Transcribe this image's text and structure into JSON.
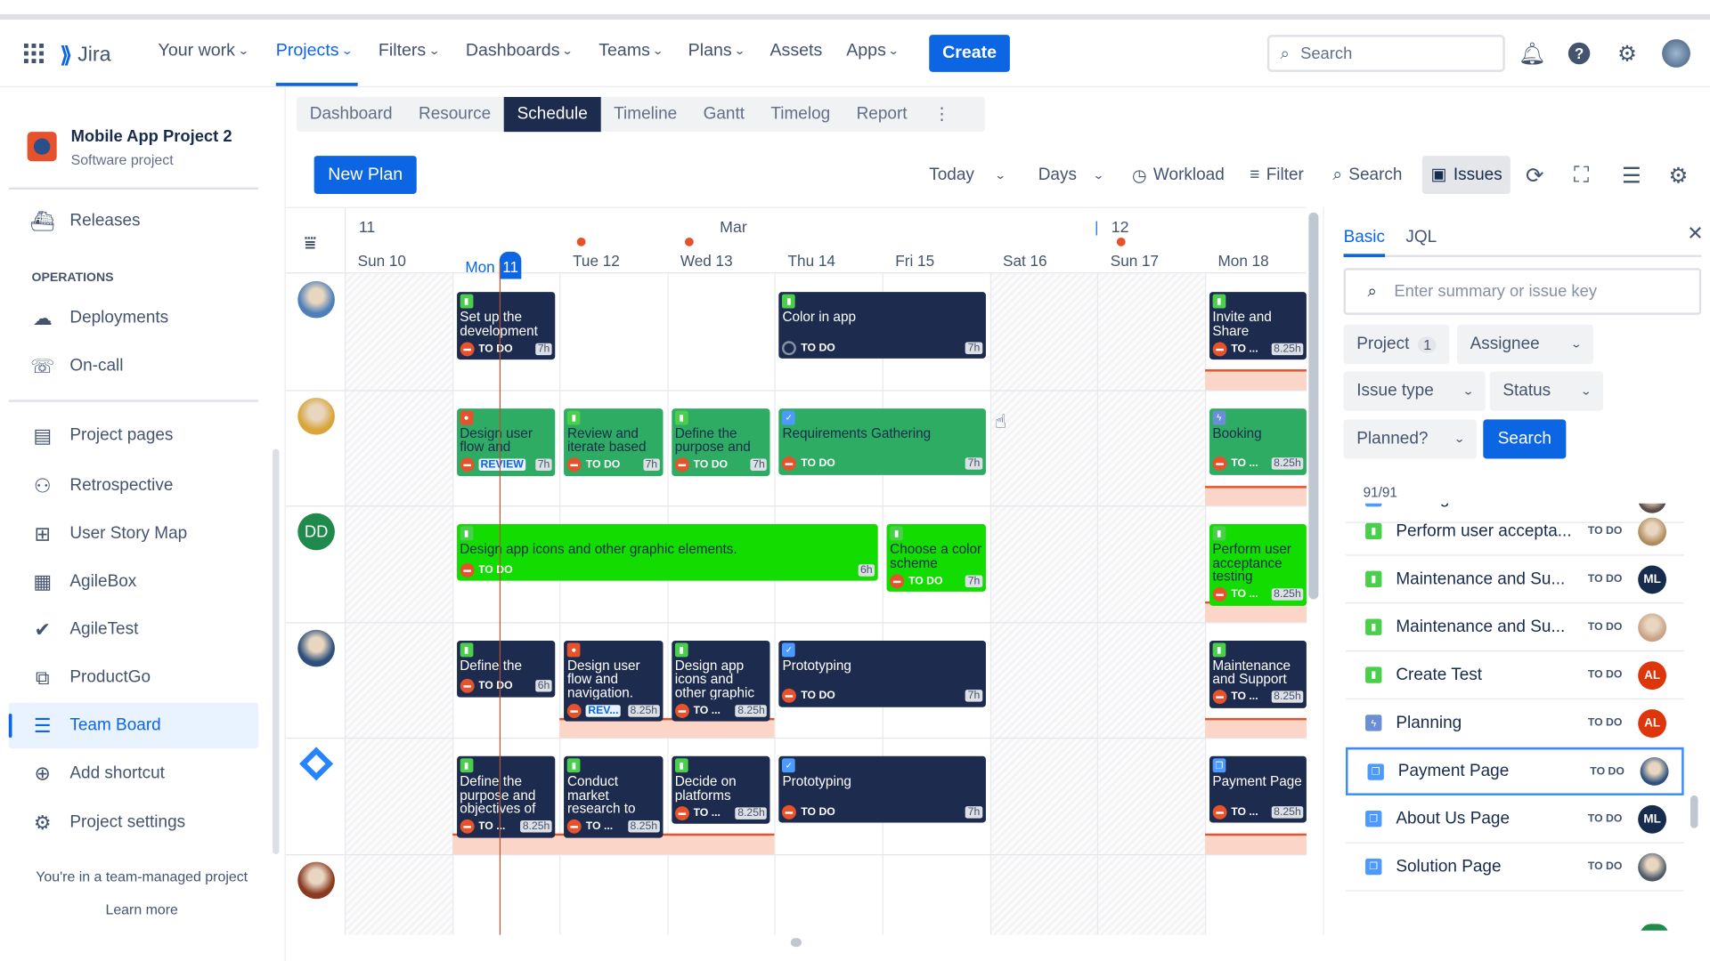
{
  "header": {
    "app_name": "Jira",
    "nav": [
      {
        "label": "Your work",
        "dropdown": true
      },
      {
        "label": "Projects",
        "dropdown": true,
        "active": true
      },
      {
        "label": "Filters",
        "dropdown": true
      },
      {
        "label": "Dashboards",
        "dropdown": true
      },
      {
        "label": "Teams",
        "dropdown": true
      },
      {
        "label": "Plans",
        "dropdown": true
      },
      {
        "label": "Assets",
        "dropdown": false
      },
      {
        "label": "Apps",
        "dropdown": true
      }
    ],
    "create_label": "Create",
    "search_placeholder": "Search",
    "icons": [
      "notification-icon",
      "help-icon",
      "settings-icon",
      "profile-avatar"
    ]
  },
  "sidebar": {
    "project_name": "Mobile App Project 2",
    "project_type": "Software project",
    "releases": "Releases",
    "operations_heading": "OPERATIONS",
    "ops_items": [
      {
        "label": "Deployments",
        "icon": "cloud-icon"
      },
      {
        "label": "On-call",
        "icon": "on-call-icon"
      }
    ],
    "items": [
      {
        "label": "Project pages",
        "icon": "page-icon"
      },
      {
        "label": "Retrospective",
        "icon": "retrospective-icon"
      },
      {
        "label": "User Story Map",
        "icon": "story-map-icon"
      },
      {
        "label": "AgileBox",
        "icon": "agilebox-icon"
      },
      {
        "label": "AgileTest",
        "icon": "agiletest-icon"
      },
      {
        "label": "ProductGo",
        "icon": "productgo-icon"
      },
      {
        "label": "Team Board",
        "icon": "team-board-icon",
        "selected": true
      },
      {
        "label": "Add shortcut",
        "icon": "add-shortcut-icon"
      },
      {
        "label": "Project settings",
        "icon": "settings-icon"
      }
    ],
    "footer_text": "You're in a team-managed project",
    "learn_more": "Learn more"
  },
  "tabs": [
    {
      "label": "Dashboard"
    },
    {
      "label": "Resource"
    },
    {
      "label": "Schedule",
      "active": true
    },
    {
      "label": "Timeline"
    },
    {
      "label": "Gantt"
    },
    {
      "label": "Timelog"
    },
    {
      "label": "Report"
    }
  ],
  "toolbar": {
    "new_plan": "New Plan",
    "today": "Today",
    "days": "Days",
    "workload": "Workload",
    "filter": "Filter",
    "search": "Search",
    "issues": "Issues"
  },
  "schedule": {
    "week_label": "11",
    "month_label": "Mar",
    "next_week_label": "12",
    "days": [
      {
        "label": "Sun 10",
        "weekend": true
      },
      {
        "label": "Mon",
        "today_num": "11",
        "today": true
      },
      {
        "label": "Tue 12",
        "marker": true
      },
      {
        "label": "Wed 13",
        "marker": true
      },
      {
        "label": "Thu 14"
      },
      {
        "label": "Fri 15"
      },
      {
        "label": "Sat 16",
        "weekend": true
      },
      {
        "label": "Sun 17",
        "weekend": true,
        "marker": true
      },
      {
        "label": "Mon 18"
      }
    ],
    "colors": {
      "dark": "#1d2b4f",
      "green": "#2eac63",
      "bright": "#12dc00",
      "overload": "#fbd6c8",
      "today_line": "#b0563a"
    },
    "rows": [
      {
        "avatar": "avatar-photo-1",
        "avatar_color": "#4f7fb8",
        "tasks": [
          {
            "day": 1,
            "span": 1,
            "title": "Set up the development",
            "status": "TO DO",
            "hours": "7h",
            "type": "story",
            "color": "dark"
          },
          {
            "day": 4,
            "span": 2,
            "title": "Color in app",
            "status": "TO DO",
            "hours": "7h",
            "type": "story",
            "color": "dark",
            "status_icon": "open"
          },
          {
            "day": 8,
            "span": 1,
            "title": "Invite and Share",
            "status": "TO ...",
            "hours": "8.25h",
            "type": "story",
            "color": "dark"
          }
        ],
        "overload": [
          {
            "day": 8,
            "span": 1
          }
        ]
      },
      {
        "avatar": "avatar-photo-2",
        "avatar_color": "#d9a53b",
        "tasks": [
          {
            "day": 1,
            "span": 1,
            "title": "Design user flow and",
            "status": "REVIEW",
            "hours": "7h",
            "type": "bug",
            "color": "green"
          },
          {
            "day": 2,
            "span": 1,
            "title": "Review and iterate based",
            "status": "TO DO",
            "hours": "7h",
            "type": "story",
            "color": "green"
          },
          {
            "day": 3,
            "span": 1,
            "title": "Define the purpose and",
            "status": "TO DO",
            "hours": "7h",
            "type": "story",
            "color": "green"
          },
          {
            "day": 4,
            "span": 2,
            "title": "Requirements Gathering",
            "status": "TO DO",
            "hours": "7h",
            "type": "task",
            "color": "green"
          },
          {
            "day": 8,
            "span": 1,
            "title": "Booking",
            "status": "TO ...",
            "hours": "8.25h",
            "type": "epic",
            "color": "green"
          }
        ],
        "overload": [
          {
            "day": 8,
            "span": 1
          }
        ]
      },
      {
        "avatar": "avatar-initials",
        "avatar_text": "DD",
        "avatar_color": "#1f8a4c",
        "tasks": [
          {
            "day": 1,
            "span": 4,
            "title": "Design app icons and other graphic elements.",
            "status": "TO DO",
            "hours": "6h",
            "type": "story",
            "color": "bright"
          },
          {
            "day": 5,
            "span": 1,
            "title": "Choose a color scheme",
            "status": "TO DO",
            "hours": "7h",
            "type": "story",
            "color": "bright"
          },
          {
            "day": 8,
            "span": 1,
            "title": "Perform user acceptance testing",
            "status": "TO ...",
            "hours": "8.25h",
            "type": "story",
            "color": "bright"
          }
        ],
        "overload": [
          {
            "day": 8,
            "span": 1
          }
        ]
      },
      {
        "avatar": "avatar-photo-3",
        "avatar_color": "#2d4f7c",
        "tasks": [
          {
            "day": 1,
            "span": 1,
            "title": "Define the",
            "status": "TO DO",
            "hours": "6h",
            "type": "story",
            "color": "dark"
          },
          {
            "day": 2,
            "span": 1,
            "title": "Design user flow and navigation.",
            "status": "REV...",
            "hours": "8.25h",
            "type": "bug",
            "color": "dark"
          },
          {
            "day": 3,
            "span": 1,
            "title": "Design app icons and other graphic",
            "status": "TO ...",
            "hours": "8.25h",
            "type": "story",
            "color": "dark"
          },
          {
            "day": 4,
            "span": 2,
            "title": "Prototyping",
            "status": "TO DO",
            "hours": "7h",
            "type": "task",
            "color": "dark"
          },
          {
            "day": 8,
            "span": 1,
            "title": "Maintenance and Support",
            "status": "TO ...",
            "hours": "8.25h",
            "type": "story",
            "color": "dark"
          }
        ],
        "overload": [
          {
            "day": 2,
            "span": 2
          },
          {
            "day": 8,
            "span": 1
          }
        ]
      },
      {
        "avatar": "avatar-logo",
        "avatar_color": "#2684ff",
        "tasks": [
          {
            "day": 1,
            "span": 1,
            "title": "Define the purpose and objectives of",
            "status": "TO ...",
            "hours": "8.25h",
            "type": "story",
            "color": "dark"
          },
          {
            "day": 2,
            "span": 1,
            "title": "Conduct market research to",
            "status": "TO ...",
            "hours": "8.25h",
            "type": "story",
            "color": "dark"
          },
          {
            "day": 3,
            "span": 1,
            "title": "Decide on platforms",
            "status": "TO ...",
            "hours": "8.25h",
            "type": "story",
            "color": "dark"
          },
          {
            "day": 4,
            "span": 2,
            "title": "Prototyping",
            "status": "TO DO",
            "hours": "7h",
            "type": "task",
            "color": "dark"
          },
          {
            "day": 8,
            "span": 1,
            "title": "Payment Page",
            "status": "TO ...",
            "hours": "8.25h",
            "type": "page",
            "color": "dark"
          }
        ],
        "overload": [
          {
            "day": 1,
            "span": 3
          },
          {
            "day": 8,
            "span": 1
          }
        ]
      },
      {
        "avatar": "avatar-photo-4",
        "avatar_color": "#8b3a22",
        "tasks": [],
        "overload": []
      }
    ]
  },
  "panel": {
    "tabs": [
      {
        "label": "Basic",
        "active": true
      },
      {
        "label": "JQL"
      }
    ],
    "search_placeholder": "Enter summary or issue key",
    "filters": {
      "project": "Project",
      "project_count": "1",
      "assignee": "Assignee",
      "issue_type": "Issue type",
      "status": "Status",
      "planned": "Planned?"
    },
    "search_button": "Search",
    "count": "91/91",
    "issues": [
      {
        "name": "Testing",
        "status": "TO DO",
        "type": "task",
        "avatar_color": "#5a4a4a",
        "partial": true
      },
      {
        "name": "Perform user accepta...",
        "status": "TO DO",
        "type": "story",
        "avatar_color": "#b08a5a"
      },
      {
        "name": "Maintenance and Su...",
        "status": "TO DO",
        "type": "story",
        "avatar_text": "ML",
        "avatar_color": "#172b4d"
      },
      {
        "name": "Maintenance and Su...",
        "status": "TO DO",
        "type": "story",
        "avatar_color": "#c9a184"
      },
      {
        "name": "Create Test",
        "status": "TO DO",
        "type": "story",
        "avatar_text": "AL",
        "avatar_color": "#de350b"
      },
      {
        "name": "Planning",
        "status": "TO DO",
        "type": "epic",
        "avatar_text": "AL",
        "avatar_color": "#de350b"
      },
      {
        "name": "Payment Page",
        "status": "TO DO",
        "type": "page",
        "avatar_color": "#2d4f7c",
        "selected": true
      },
      {
        "name": "About Us Page",
        "status": "TO DO",
        "type": "page",
        "avatar_text": "ML",
        "avatar_color": "#172b4d"
      },
      {
        "name": "Solution Page",
        "status": "TO DO",
        "type": "page",
        "avatar_color": "#4a5a6a"
      }
    ]
  }
}
